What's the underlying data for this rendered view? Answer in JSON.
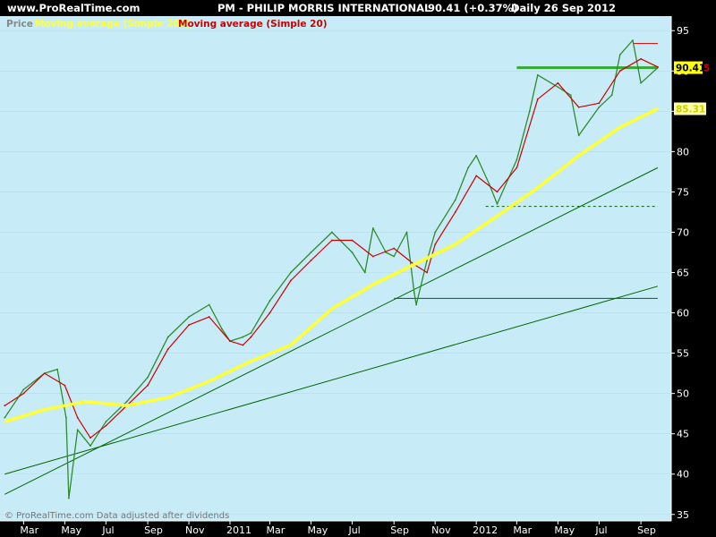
{
  "header": {
    "site": "www.ProRealTime.com",
    "instrument": "PM - PHILIP MORRIS INTERNATIONAL",
    "last": "90.41 (+0.37%)",
    "period": "Daily  26 Sep 2012"
  },
  "legend": {
    "price": "Price",
    "ma200": "Moving average (Simple 200)",
    "ma20": "Moving average (Simple 20)"
  },
  "footer": "© ProRealTime.com  Data adjusted after dividends",
  "colors": {
    "background": "#000000",
    "plot_background": "#c7ecf7",
    "ma200": "#ffff33",
    "ma20": "#cc0000",
    "ma_fast_blue": "#0000cc",
    "candle_up": "#2e8b2e",
    "trendline": "#006600",
    "resistance": "#33aa33",
    "peak_line": "#cc0000",
    "last_price_box": "#ffff00",
    "ma20_label_color": "#cc0000",
    "ma200_label_bg": "#ffffaa",
    "ma200_label_fg": "#cccc00"
  },
  "chart_data": {
    "type": "line",
    "x_ticks": [
      "Mar",
      "May",
      "Jul",
      "Sep",
      "Nov",
      "2011",
      "Mar",
      "May",
      "Jul",
      "Sep",
      "Nov",
      "2012",
      "Mar",
      "May",
      "Jul",
      "Sep"
    ],
    "y_ticks": [
      35,
      40,
      45,
      50,
      55,
      60,
      65,
      70,
      75,
      80,
      85,
      90,
      95
    ],
    "ylim": [
      34.2,
      96.8
    ],
    "last_price_label": "90.41",
    "ma20_tag": "5",
    "ma200_label": "85.31",
    "series": [
      {
        "name": "Price",
        "x": [
          "2010-02-01",
          "2010-03-01",
          "2010-04-01",
          "2010-04-20",
          "2010-05-03",
          "2010-05-07",
          "2010-05-20",
          "2010-06-08",
          "2010-07-01",
          "2010-08-01",
          "2010-09-01",
          "2010-10-01",
          "2010-11-01",
          "2010-12-01",
          "2010-12-20",
          "2011-01-01",
          "2011-01-20",
          "2011-02-01",
          "2011-03-01",
          "2011-04-01",
          "2011-05-01",
          "2011-06-01",
          "2011-07-01",
          "2011-07-20",
          "2011-08-01",
          "2011-08-20",
          "2011-09-01",
          "2011-09-20",
          "2011-10-01",
          "2011-10-04",
          "2011-10-20",
          "2011-11-01",
          "2011-12-01",
          "2011-12-20",
          "2012-01-01",
          "2012-01-20",
          "2012-02-01",
          "2012-03-01",
          "2012-03-20",
          "2012-04-01",
          "2012-05-01",
          "2012-05-20",
          "2012-06-01",
          "2012-07-01",
          "2012-07-20",
          "2012-08-01",
          "2012-08-20",
          "2012-09-01",
          "2012-09-26"
        ],
        "y": [
          47.0,
          50.5,
          52.5,
          53.0,
          47.0,
          37.0,
          45.5,
          43.5,
          46.5,
          49.0,
          52.0,
          57.0,
          59.5,
          61.0,
          58.0,
          56.5,
          57.0,
          57.5,
          61.5,
          65.0,
          67.5,
          70.0,
          67.5,
          65.0,
          70.5,
          67.5,
          67.0,
          70.0,
          62.5,
          61.0,
          66.5,
          70.0,
          74.0,
          78.0,
          79.5,
          76.0,
          73.5,
          79.0,
          85.0,
          89.5,
          88.0,
          87.0,
          82.0,
          85.5,
          87.0,
          92.0,
          93.8,
          88.5,
          90.41
        ]
      },
      {
        "name": "Moving average (Simple 20)",
        "x": [
          "2010-02-01",
          "2010-03-01",
          "2010-04-01",
          "2010-05-01",
          "2010-05-20",
          "2010-06-08",
          "2010-07-01",
          "2010-08-01",
          "2010-09-01",
          "2010-10-01",
          "2010-11-01",
          "2010-12-01",
          "2011-01-01",
          "2011-01-20",
          "2011-02-01",
          "2011-03-01",
          "2011-04-01",
          "2011-05-01",
          "2011-06-01",
          "2011-07-01",
          "2011-08-01",
          "2011-09-01",
          "2011-10-01",
          "2011-10-20",
          "2011-11-01",
          "2011-12-01",
          "2012-01-01",
          "2012-02-01",
          "2012-03-01",
          "2012-04-01",
          "2012-05-01",
          "2012-06-01",
          "2012-07-01",
          "2012-08-01",
          "2012-09-01",
          "2012-09-26"
        ],
        "y": [
          48.5,
          50.0,
          52.5,
          51.0,
          47.0,
          44.5,
          46.0,
          48.5,
          51.0,
          55.5,
          58.5,
          59.5,
          56.5,
          56.0,
          57.0,
          60.0,
          64.0,
          66.5,
          69.0,
          69.0,
          67.0,
          68.0,
          66.0,
          65.0,
          68.5,
          72.5,
          77.0,
          75.0,
          78.0,
          86.5,
          88.5,
          85.5,
          86.0,
          90.0,
          91.5,
          90.5
        ]
      },
      {
        "name": "Moving average (Simple 200)",
        "x": [
          "2010-02-01",
          "2010-04-01",
          "2010-06-01",
          "2010-08-01",
          "2010-10-01",
          "2010-12-01",
          "2011-02-01",
          "2011-04-01",
          "2011-06-01",
          "2011-08-01",
          "2011-10-01",
          "2011-12-01",
          "2012-02-01",
          "2012-04-01",
          "2012-06-01",
          "2012-08-01",
          "2012-09-26"
        ],
        "y": [
          46.5,
          48.0,
          49.0,
          48.5,
          49.5,
          51.5,
          54.0,
          56.0,
          60.5,
          63.5,
          66.0,
          68.5,
          72.0,
          75.5,
          79.5,
          83.0,
          85.31
        ]
      }
    ],
    "levels": [
      {
        "y": 90.41,
        "from": "2012-03-01",
        "to": "2012-09-26",
        "style": "solid-thick"
      },
      {
        "y": 93.4,
        "from": "2012-08-20",
        "to": "2012-09-26",
        "style": "solid-thin"
      },
      {
        "y": 73.2,
        "from": "2012-01-15",
        "to": "2012-09-26",
        "style": "dashed"
      },
      {
        "y": 61.8,
        "from": "2011-09-01",
        "to": "2012-09-26",
        "style": "solid-thin"
      }
    ],
    "trendlines": [
      {
        "x1": "2010-02-01",
        "y1": 37.5,
        "x2": "2012-09-26",
        "y2": 78.0
      },
      {
        "x1": "2010-02-01",
        "y1": 40.0,
        "x2": "2012-09-26",
        "y2": 63.3
      }
    ]
  }
}
